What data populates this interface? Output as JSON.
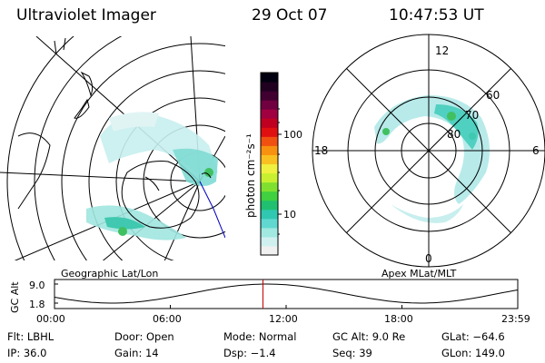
{
  "header": {
    "instrument": "Ultraviolet Imager",
    "date": "29 Oct 07",
    "time": "10:47:53 UT"
  },
  "colorbar": {
    "unit_label": "photon cm⁻²s⁻¹",
    "ticks": [
      "100",
      "10"
    ],
    "colors": [
      "#f0f0f0",
      "#d0f0f0",
      "#a0e8e0",
      "#60d8d0",
      "#30c8b0",
      "#20c070",
      "#40d040",
      "#80e030",
      "#c8f030",
      "#f0f040",
      "#f8c020",
      "#f89010",
      "#f05010",
      "#e01010",
      "#c00020",
      "#a00040",
      "#700040",
      "#400030",
      "#200020",
      "#000010"
    ]
  },
  "left_panel": {
    "label": "Geographic Lat/Lon"
  },
  "right_panel": {
    "label": "Apex MLat/MLT",
    "mlt_labels": {
      "top": "12",
      "left": "18",
      "right": "6",
      "bottom": "0"
    },
    "mlat_labels": [
      "60",
      "70",
      "80"
    ]
  },
  "altitude_plot": {
    "axis_label": "GC Alt",
    "y_ticks": [
      "9.0",
      "1.8"
    ],
    "x_ticks": [
      "00:00",
      "06:00",
      "12:00",
      "18:00",
      "23:59"
    ],
    "current_time_marker_hour": 10.8,
    "marker_color": "#c00000"
  },
  "info": {
    "filter": "Flt: LBHL",
    "door": "Door: Open",
    "mode": "Mode: Normal",
    "gc_alt": "GC Alt: 9.0 Re",
    "glat": "GLat: −64.6",
    "ip": "IP: 36.0",
    "gain": "Gain: 14",
    "dsp": "Dsp:   −1.4",
    "seq": "Seq: 39",
    "glon": "GLon: 149.0"
  }
}
